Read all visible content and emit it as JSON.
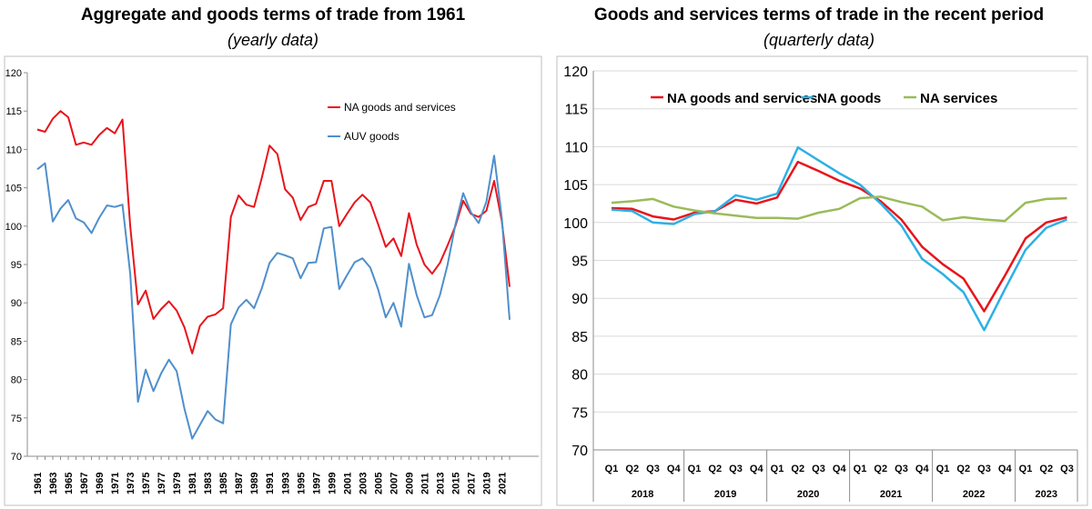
{
  "chart_data": [
    {
      "type": "line",
      "title": "Aggregate and goods terms of trade from 1961",
      "subtitle": "(yearly data)",
      "ylim": [
        70,
        120
      ],
      "yticks": [
        "70",
        "75",
        "80",
        "85",
        "90",
        "95",
        "100",
        "105",
        "110",
        "115",
        "120"
      ],
      "grid": false,
      "legend_position": "top-center",
      "x": [
        1961,
        1962,
        1963,
        1964,
        1965,
        1966,
        1967,
        1968,
        1969,
        1970,
        1971,
        1972,
        1973,
        1974,
        1975,
        1976,
        1977,
        1978,
        1979,
        1980,
        1981,
        1982,
        1983,
        1984,
        1985,
        1986,
        1987,
        1988,
        1989,
        1990,
        1991,
        1992,
        1993,
        1994,
        1995,
        1996,
        1997,
        1998,
        1999,
        2000,
        2001,
        2002,
        2003,
        2004,
        2005,
        2006,
        2007,
        2008,
        2009,
        2010,
        2011,
        2012,
        2013,
        2014,
        2015,
        2016,
        2017,
        2018,
        2019,
        2020,
        2021,
        2022
      ],
      "xtick_labels": [
        "1961",
        "1963",
        "1965",
        "1967",
        "1969",
        "1971",
        "1973",
        "1975",
        "1977",
        "1979",
        "1981",
        "1983",
        "1985",
        "1987",
        "1989",
        "1991",
        "1993",
        "1995",
        "1997",
        "1999",
        "2001",
        "2003",
        "2005",
        "2007",
        "2009",
        "2011",
        "2013",
        "2015",
        "2017",
        "2019",
        "2021"
      ],
      "series": [
        {
          "name": "NA goods and services",
          "color": "#e8141b",
          "values": [
            112.6,
            112.3,
            114.0,
            115.0,
            114.2,
            110.6,
            110.9,
            110.6,
            111.9,
            112.8,
            112.1,
            113.9,
            100.0,
            89.8,
            91.6,
            87.9,
            89.2,
            90.2,
            89.0,
            86.8,
            83.4,
            87.0,
            88.2,
            88.5,
            89.3,
            101.2,
            104.0,
            102.8,
            102.5,
            106.3,
            110.5,
            109.4,
            104.8,
            103.7,
            100.8,
            102.5,
            102.9,
            105.9,
            105.9,
            100.0,
            101.6,
            103.1,
            104.1,
            103.1,
            100.3,
            97.3,
            98.4,
            96.1,
            101.7,
            97.6,
            95.0,
            93.8,
            95.2,
            97.5,
            100.0,
            103.3,
            101.6,
            101.2,
            102.0,
            105.9,
            100.6,
            92.1
          ]
        },
        {
          "name": "AUV goods",
          "color": "#4f8fcb",
          "values": [
            107.4,
            108.2,
            100.6,
            102.3,
            103.4,
            101.0,
            100.5,
            99.1,
            101.1,
            102.7,
            102.5,
            102.8,
            93.8,
            77.1,
            81.3,
            78.5,
            80.8,
            82.6,
            81.1,
            76.2,
            72.3,
            74.1,
            75.9,
            74.8,
            74.3,
            87.2,
            89.4,
            90.4,
            89.3,
            91.9,
            95.2,
            96.5,
            96.2,
            95.8,
            93.2,
            95.2,
            95.3,
            99.7,
            99.9,
            91.8,
            93.6,
            95.3,
            95.8,
            94.6,
            91.8,
            88.1,
            90.0,
            86.9,
            95.1,
            91.0,
            88.1,
            88.4,
            91.0,
            95.0,
            100.2,
            104.3,
            101.8,
            100.4,
            103.2,
            109.2,
            101.0,
            87.8
          ]
        }
      ]
    },
    {
      "type": "line",
      "title": "Goods and services terms of trade in the recent period",
      "subtitle": "(quarterly data)",
      "ylim": [
        70,
        120
      ],
      "yticks": [
        "70",
        "75",
        "80",
        "85",
        "90",
        "95",
        "100",
        "105",
        "110",
        "115",
        "120"
      ],
      "grid": true,
      "legend_position": "top",
      "quarters": [
        "Q1",
        "Q2",
        "Q3",
        "Q4",
        "Q1",
        "Q2",
        "Q3",
        "Q4",
        "Q1",
        "Q2",
        "Q3",
        "Q4",
        "Q1",
        "Q2",
        "Q3",
        "Q4",
        "Q1",
        "Q2",
        "Q3",
        "Q4",
        "Q1",
        "Q2",
        "Q3"
      ],
      "years": [
        "2018",
        "2019",
        "2020",
        "2021",
        "2022",
        "2023"
      ],
      "series": [
        {
          "name": "NA goods and services",
          "color": "#e8141b",
          "values": [
            101.9,
            101.8,
            100.8,
            100.4,
            101.3,
            101.5,
            103.0,
            102.5,
            103.3,
            108.0,
            106.8,
            105.5,
            104.5,
            102.8,
            100.4,
            96.8,
            94.5,
            92.6,
            88.3,
            93.0,
            97.9,
            100.0,
            100.7
          ]
        },
        {
          "name": "NA goods",
          "color": "#2db0e4",
          "values": [
            101.7,
            101.5,
            100.0,
            99.8,
            101.1,
            101.5,
            103.6,
            103.0,
            103.8,
            109.9,
            108.2,
            106.5,
            105.0,
            102.5,
            99.6,
            95.2,
            93.2,
            90.8,
            85.8,
            91.2,
            96.4,
            99.3,
            100.4
          ]
        },
        {
          "name": "NA services",
          "color": "#9bbb59",
          "values": [
            102.6,
            102.8,
            103.1,
            102.1,
            101.6,
            101.2,
            100.9,
            100.6,
            100.6,
            100.5,
            101.3,
            101.8,
            103.2,
            103.4,
            102.7,
            102.1,
            100.3,
            100.7,
            100.4,
            100.2,
            102.6,
            103.1,
            103.2
          ]
        }
      ]
    }
  ]
}
